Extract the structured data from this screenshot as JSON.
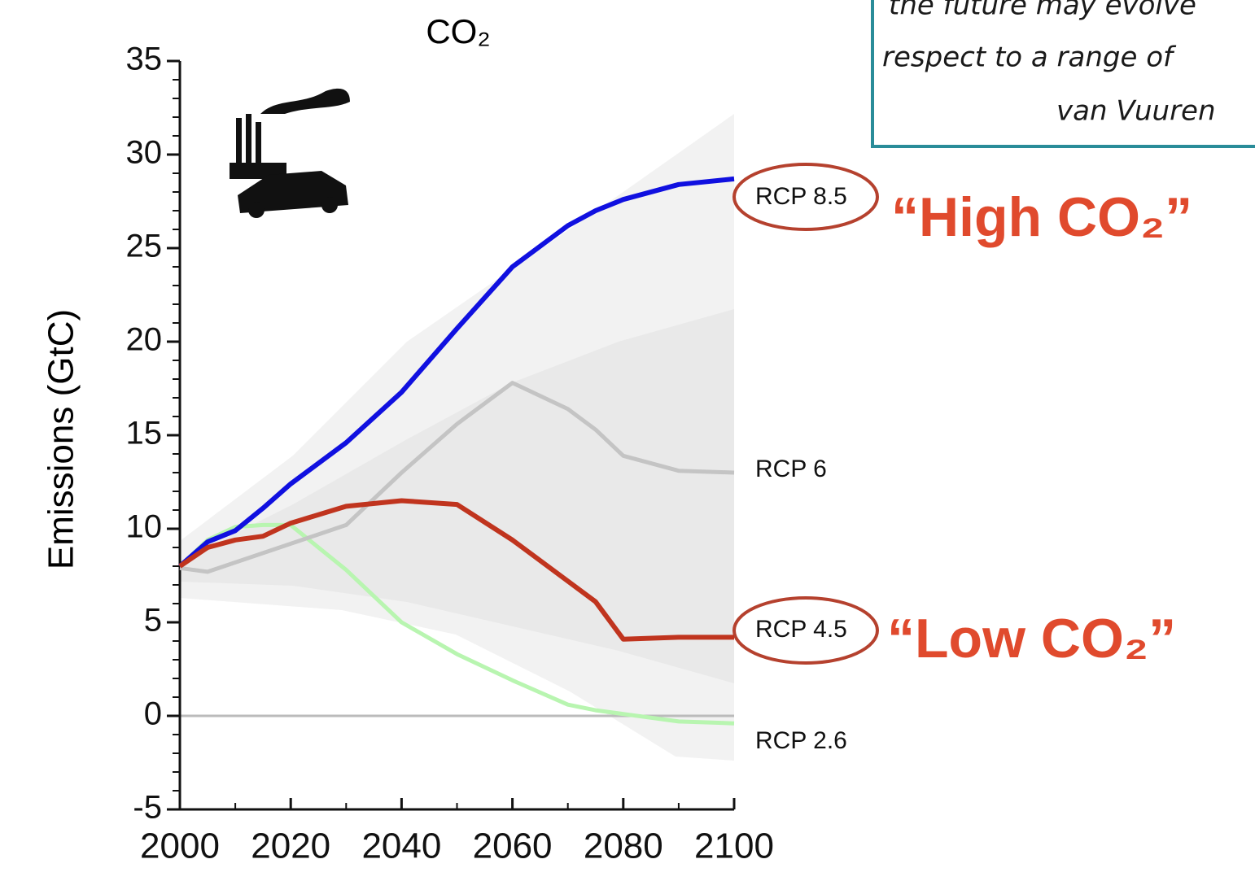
{
  "chart_data": {
    "type": "line",
    "title": "CO₂",
    "y_label": "Emissions (GtC)",
    "x": [
      2000,
      2005,
      2010,
      2015,
      2020,
      2030,
      2040,
      2050,
      2060,
      2070,
      2075,
      2080,
      2090,
      2100
    ],
    "series": [
      {
        "name": "RCP 8.5",
        "color": "#1010e0",
        "values": [
          8,
          9.3,
          9.9,
          11.1,
          12.4,
          14.6,
          17.3,
          20.7,
          24,
          26.2,
          27,
          27.6,
          28.4,
          28.7
        ]
      },
      {
        "name": "RCP 6",
        "color": "#c4c4c4",
        "values": [
          7.9,
          7.7,
          8.2,
          8.7,
          9.2,
          10.2,
          13,
          15.6,
          17.8,
          16.4,
          15.3,
          13.9,
          13.1,
          13.0
        ]
      },
      {
        "name": "RCP 4.5",
        "color": "#c0341e",
        "values": [
          8,
          9,
          9.4,
          9.6,
          10.3,
          11.2,
          11.5,
          11.3,
          9.4,
          7.2,
          6.1,
          4.1,
          4.2,
          4.2
        ]
      },
      {
        "name": "RCP 2.6",
        "color": "#b8f5b0",
        "values": [
          8,
          9.4,
          10.1,
          10.2,
          10.2,
          7.8,
          5.0,
          3.3,
          1.9,
          0.6,
          0.3,
          0.1,
          -0.3,
          -0.4
        ]
      }
    ],
    "xlim": [
      2000,
      2100
    ],
    "xticks": [
      2000,
      2020,
      2040,
      2060,
      2080,
      2100
    ],
    "ylim": [
      -5,
      35
    ],
    "yticks": [
      -5,
      0,
      5,
      10,
      15,
      20,
      25,
      30,
      35
    ],
    "annotations": [
      "the future may evolve",
      "respect to a range of",
      "van Vuuren",
      "“High CO₂”",
      "“Low CO₂”"
    ]
  }
}
